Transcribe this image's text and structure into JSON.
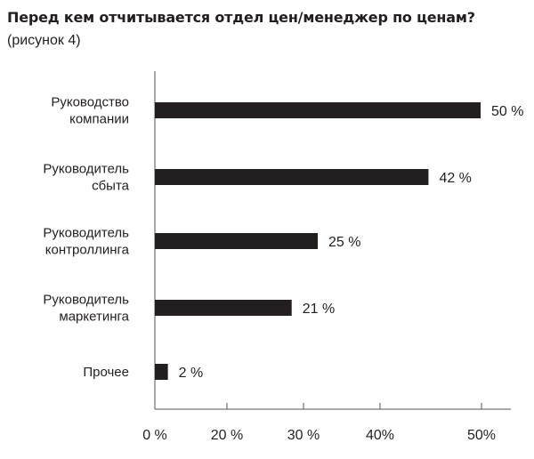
{
  "chart_data": {
    "type": "bar",
    "orientation": "horizontal",
    "title": "Перед кем отчитывается отдел цен/менеджер по ценам?",
    "subtitle": "(рисунок 4)",
    "categories": [
      [
        "Руководство",
        "компании"
      ],
      [
        "Руководитель",
        "сбыта"
      ],
      [
        "Руководитель",
        "контроллинга"
      ],
      [
        "Руководитель",
        "маркетинга"
      ],
      [
        "Прочее"
      ]
    ],
    "values": [
      50,
      42,
      25,
      21,
      2
    ],
    "value_labels": [
      "50 %",
      "42 %",
      "25 %",
      "21 %",
      "2 %"
    ],
    "x_ticks": [
      0,
      20,
      30,
      40,
      50
    ],
    "x_tick_labels": [
      "0 %",
      "20 %",
      "30 %",
      "40%",
      "50%"
    ],
    "xlim": [
      0,
      50
    ],
    "xlabel": "",
    "ylabel": "",
    "grid": false,
    "bar_color": "#231f20",
    "axis_color": "#555555"
  }
}
